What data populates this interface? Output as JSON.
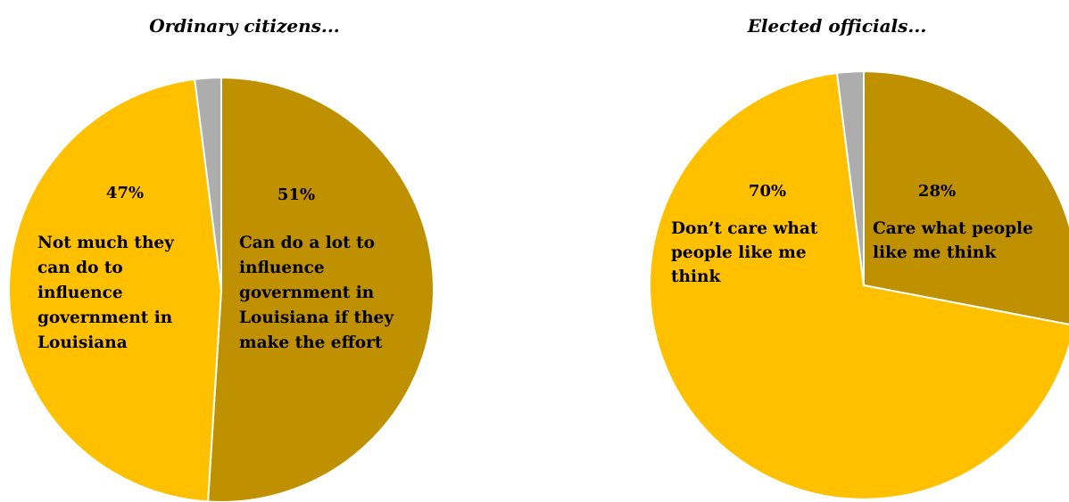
{
  "chart_data": [
    {
      "type": "pie",
      "title": "Ordinary citizens...",
      "colors": [
        "#BF9000",
        "#FFC000",
        "#ADADAD"
      ],
      "slices": [
        {
          "value": 51,
          "percent_label": "51%",
          "label_lines": [
            "Can do a lot to",
            "influence",
            "government in",
            "Louisiana if they",
            "make the effort"
          ]
        },
        {
          "value": 47,
          "percent_label": "47%",
          "label_lines": [
            "Not much they",
            "can do to",
            "influence",
            "government in",
            "Louisiana"
          ]
        },
        {
          "value": 2,
          "percent_label": "",
          "label_lines": []
        }
      ]
    },
    {
      "type": "pie",
      "title": "Elected officials...",
      "colors": [
        "#BF9000",
        "#FFC000",
        "#ADADAD"
      ],
      "slices": [
        {
          "value": 28,
          "percent_label": "28%",
          "label_lines": [
            "Care what people",
            "like me think"
          ]
        },
        {
          "value": 70,
          "percent_label": "70%",
          "label_lines": [
            "Don’t care what",
            "people like me",
            "think"
          ]
        },
        {
          "value": 2,
          "percent_label": "",
          "label_lines": []
        }
      ]
    }
  ]
}
